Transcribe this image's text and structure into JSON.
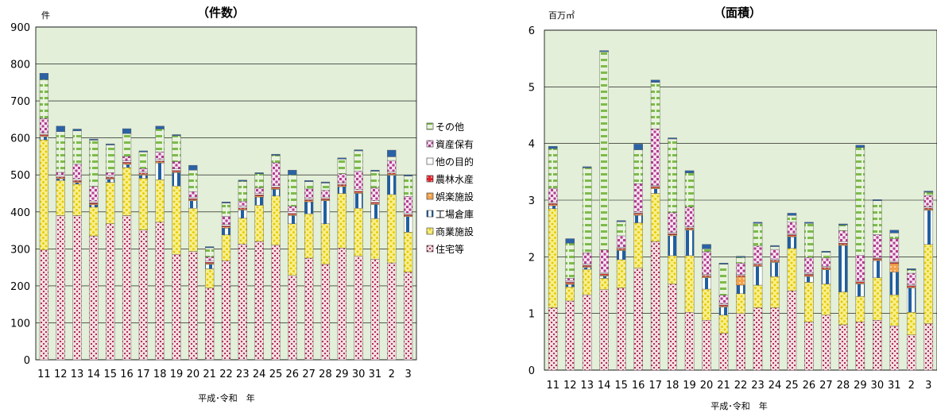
{
  "colors": {
    "plot_bg": "#e3efd9",
    "grid": "#000000",
    "住宅等": "#d9a7b5",
    "商業施設": "#f2e64b",
    "工場倉庫": "#1f5fa0",
    "娯楽施設": "#f4a14a",
    "農林水産": "#e3212d",
    "他の目的": "#ffffff",
    "資産保有": "#c76aa8",
    "その他": "#2b62a6"
  },
  "legend": {
    "items": [
      {
        "label": "その他",
        "key": "その他"
      },
      {
        "label": "資産保有",
        "key": "資産保有"
      },
      {
        "label": "他の目的",
        "key": "他の目的"
      },
      {
        "label": "農林水産",
        "key": "農林水産"
      },
      {
        "label": "娯楽施設",
        "key": "娯楽施設"
      },
      {
        "label": "工場倉庫",
        "key": "工場倉庫"
      },
      {
        "label": "商業施設",
        "key": "商業施設"
      },
      {
        "label": "住宅等",
        "key": "住宅等"
      }
    ]
  },
  "chart_data": [
    {
      "type": "bar",
      "stacked": true,
      "title": "（件数）",
      "unit_label": "件",
      "xlabel": "平成･令和　年",
      "ylim": [
        0,
        900
      ],
      "yticks": [
        0,
        100,
        200,
        300,
        400,
        500,
        600,
        700,
        800,
        900
      ],
      "grid": true,
      "categories": [
        "11",
        "12",
        "13",
        "14",
        "15",
        "16",
        "17",
        "18",
        "19",
        "20",
        "21",
        "22",
        "23",
        "24",
        "25",
        "26",
        "27",
        "28",
        "29",
        "30",
        "31",
        "2",
        "3"
      ],
      "series": [
        {
          "name": "住宅等",
          "values": [
            297,
            390,
            390,
            335,
            368,
            390,
            351,
            372,
            285,
            293,
            194,
            268,
            313,
            320,
            310,
            228,
            275,
            258,
            302,
            280,
            272,
            262,
            237
          ]
        },
        {
          "name": "商業施設",
          "values": [
            298,
            95,
            85,
            78,
            112,
            130,
            140,
            115,
            185,
            117,
            52,
            70,
            70,
            98,
            133,
            140,
            120,
            110,
            148,
            130,
            110,
            185,
            108
          ]
        },
        {
          "name": "工場倉庫",
          "values": [
            8,
            4,
            4,
            6,
            8,
            8,
            8,
            45,
            36,
            20,
            12,
            18,
            22,
            22,
            18,
            22,
            32,
            62,
            18,
            40,
            38,
            52,
            42
          ]
        },
        {
          "name": "娯楽施設",
          "values": [
            3,
            3,
            3,
            3,
            3,
            3,
            3,
            3,
            3,
            3,
            3,
            3,
            3,
            3,
            3,
            3,
            3,
            3,
            3,
            3,
            3,
            3,
            3
          ]
        },
        {
          "name": "農林水産",
          "values": [
            3,
            3,
            3,
            3,
            3,
            3,
            3,
            3,
            3,
            3,
            3,
            3,
            3,
            3,
            3,
            3,
            3,
            3,
            3,
            3,
            3,
            3,
            3
          ]
        },
        {
          "name": "他の目的",
          "values": [
            4,
            4,
            4,
            4,
            4,
            4,
            4,
            4,
            4,
            4,
            4,
            4,
            4,
            4,
            4,
            4,
            4,
            4,
            4,
            4,
            4,
            4,
            4
          ]
        },
        {
          "name": "資産保有",
          "values": [
            40,
            8,
            40,
            40,
            8,
            12,
            8,
            20,
            20,
            15,
            10,
            22,
            13,
            15,
            62,
            15,
            25,
            18,
            25,
            50,
            35,
            30,
            45
          ]
        },
        {
          "name": "その他",
          "values": [
            105,
            110,
            90,
            125,
            75,
            62,
            45,
            62,
            70,
            58,
            25,
            36,
            55,
            38,
            20,
            85,
            20,
            20,
            40,
            55,
            45,
            10,
            55
          ]
        },
        {
          "name": "_cap",
          "values": [
            17,
            15,
            5,
            3,
            3,
            13,
            3,
            8,
            3,
            13,
            3,
            3,
            3,
            3,
            3,
            13,
            3,
            3,
            3,
            3,
            3,
            18,
            3
          ]
        }
      ]
    },
    {
      "type": "bar",
      "stacked": true,
      "title": "（面積）",
      "unit_label": "百万㎡",
      "xlabel": "平成･令和　年",
      "ylim": [
        0,
        6
      ],
      "yticks": [
        0,
        1,
        2,
        3,
        4,
        5,
        6
      ],
      "grid": true,
      "categories": [
        "11",
        "12",
        "13",
        "14",
        "15",
        "16",
        "17",
        "18",
        "19",
        "20",
        "21",
        "22",
        "23",
        "24",
        "25",
        "26",
        "27",
        "28",
        "29",
        "30",
        "31",
        "2",
        "3"
      ],
      "series": [
        {
          "name": "住宅等",
          "values": [
            1.1,
            1.22,
            1.33,
            1.42,
            1.45,
            1.8,
            2.27,
            1.52,
            1.02,
            0.88,
            0.65,
            1.0,
            1.1,
            1.1,
            1.4,
            0.85,
            0.97,
            0.8,
            0.85,
            0.88,
            0.78,
            0.62,
            0.82
          ]
        },
        {
          "name": "商業施設",
          "values": [
            1.75,
            0.25,
            0.45,
            0.2,
            0.5,
            0.8,
            0.85,
            0.5,
            1.0,
            0.55,
            0.32,
            0.35,
            0.4,
            0.55,
            0.75,
            0.7,
            0.55,
            0.58,
            0.45,
            0.75,
            0.55,
            0.4,
            1.4
          ]
        },
        {
          "name": "工場倉庫",
          "values": [
            0.05,
            0.04,
            0.03,
            0.04,
            0.16,
            0.13,
            0.08,
            0.35,
            0.45,
            0.2,
            0.14,
            0.15,
            0.33,
            0.25,
            0.2,
            0.1,
            0.25,
            0.82,
            0.22,
            0.3,
            0.4,
            0.43,
            0.6
          ]
        },
        {
          "name": "娯楽施設",
          "values": [
            0.02,
            0.02,
            0.02,
            0.02,
            0.02,
            0.02,
            0.02,
            0.02,
            0.02,
            0.02,
            0.02,
            0.15,
            0.02,
            0.02,
            0.02,
            0.02,
            0.02,
            0.02,
            0.02,
            0.02,
            0.15,
            0.02,
            0.02
          ]
        },
        {
          "name": "農林水産",
          "values": [
            0.02,
            0.02,
            0.02,
            0.02,
            0.02,
            0.02,
            0.02,
            0.02,
            0.02,
            0.02,
            0.02,
            0.02,
            0.02,
            0.02,
            0.02,
            0.02,
            0.02,
            0.02,
            0.02,
            0.02,
            0.02,
            0.02,
            0.02
          ]
        },
        {
          "name": "他の目的",
          "values": [
            0.02,
            0.02,
            0.02,
            0.02,
            0.02,
            0.02,
            0.02,
            0.02,
            0.02,
            0.02,
            0.02,
            0.02,
            0.02,
            0.02,
            0.02,
            0.02,
            0.02,
            0.02,
            0.02,
            0.02,
            0.02,
            0.02,
            0.02
          ]
        },
        {
          "name": "資産保有",
          "values": [
            0.25,
            0.05,
            0.2,
            0.4,
            0.2,
            0.5,
            1.0,
            0.35,
            0.35,
            0.4,
            0.15,
            0.2,
            0.3,
            0.17,
            0.2,
            0.28,
            0.15,
            0.2,
            0.45,
            0.4,
            0.4,
            0.2,
            0.2
          ]
        },
        {
          "name": "その他",
          "values": [
            0.7,
            0.62,
            1.5,
            3.5,
            0.25,
            0.6,
            0.82,
            1.3,
            0.6,
            0.05,
            0.55,
            0.1,
            0.4,
            0.05,
            0.12,
            0.6,
            0.1,
            0.1,
            1.9,
            0.6,
            0.1,
            0.06,
            0.06
          ]
        },
        {
          "name": "_cap",
          "values": [
            0.04,
            0.08,
            0.02,
            0.02,
            0.02,
            0.1,
            0.04,
            0.02,
            0.04,
            0.08,
            0.02,
            0.02,
            0.02,
            0.02,
            0.04,
            0.02,
            0.02,
            0.02,
            0.04,
            0.02,
            0.05,
            0.02,
            0.02
          ]
        }
      ]
    }
  ]
}
